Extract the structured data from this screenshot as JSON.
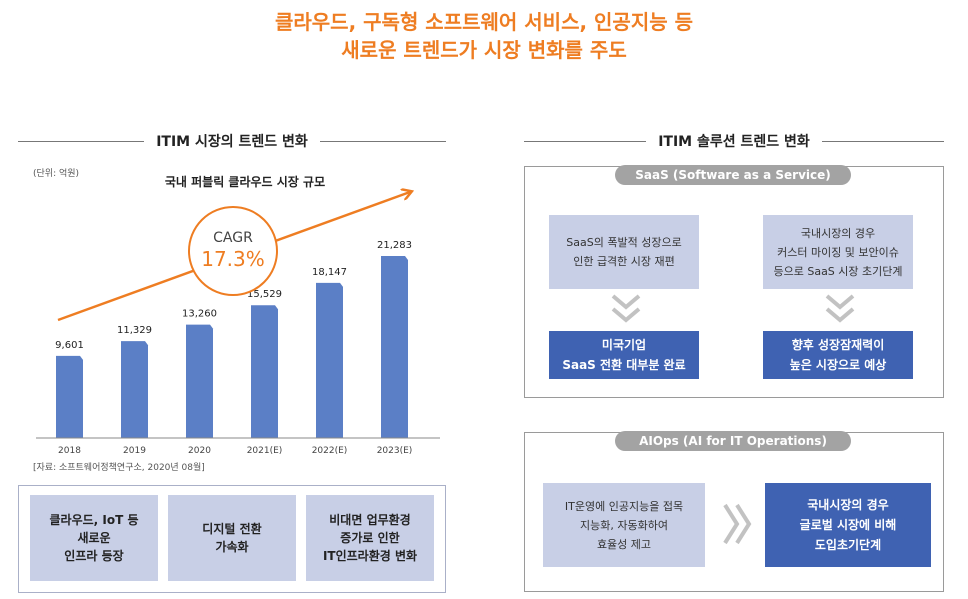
{
  "headline": {
    "line1": "클라우드, 구독형 소프트웨어 서비스, 인공지능 등",
    "line2": "새로운 트렌드가 시장 변화를 주도"
  },
  "left": {
    "section_title": "ITIM 시장의 트렌드 변화",
    "unit": "(단위: 억원)",
    "cagr_label": "CAGR",
    "cagr_value": "17.3%",
    "source": "[자료: 소프트웨어정책연구소, 2020년 08월]",
    "factors": [
      {
        "l1": "클라우드, IoT 등",
        "l2": "새로운",
        "l3": "인프라 등장"
      },
      {
        "l1": "디지털 전환",
        "l2": "가속화"
      },
      {
        "l1": "비대면 업무환경",
        "l2": "증가로 인한",
        "l3": "IT인프라환경 변화"
      }
    ]
  },
  "chart_data": {
    "type": "bar",
    "title": "국내 퍼블릭 클라우드 시장 규모",
    "categories": [
      "2018",
      "2019",
      "2020",
      "2021(E)",
      "2022(E)",
      "2023(E)"
    ],
    "values": [
      9601,
      11329,
      13260,
      15529,
      18147,
      21283
    ],
    "value_labels": [
      "9,601",
      "11,329",
      "13,260",
      "15,529",
      "18,147",
      "21,283"
    ],
    "xlabel": "",
    "ylabel": "",
    "grid": false,
    "legend": "none",
    "bar_color": "#5b7fc6",
    "trend_color": "#ee7d22"
  },
  "right": {
    "section_title": "ITIM 솔루션 트렌드 변화",
    "saas": {
      "pill": "SaaS (Software as a Service)",
      "box1": {
        "l1": "SaaS의 폭발적 성장으로",
        "l2": "인한 급격한 시장 재편"
      },
      "box2": {
        "l1": "국내시장의 경우",
        "l2": "커스터 마이징 및 보안이슈",
        "l3": "등으로 SaaS 시장 초기단계"
      },
      "box3": {
        "l1": "미국기업",
        "l2": "SaaS 전환 대부분 완료"
      },
      "box4": {
        "l1": "향후 성장잠재력이",
        "l2": "높은 시장으로 예상"
      }
    },
    "aiops": {
      "pill": "AIOps (AI for IT Operations)",
      "box1": {
        "l1": "IT운영에 인공지능을 접목",
        "l2": "지능화, 자동화하여",
        "l3": "효율성 제고"
      },
      "box2": {
        "l1": "국내시장의 경우",
        "l2": "글로벌 시장에 비해",
        "l3": "도입초기단계"
      }
    }
  },
  "colors": {
    "accent": "#ee7d22",
    "light_box": "#c8cfe6",
    "dark_box": "#3f62b2",
    "pill": "#a3a3a3"
  }
}
